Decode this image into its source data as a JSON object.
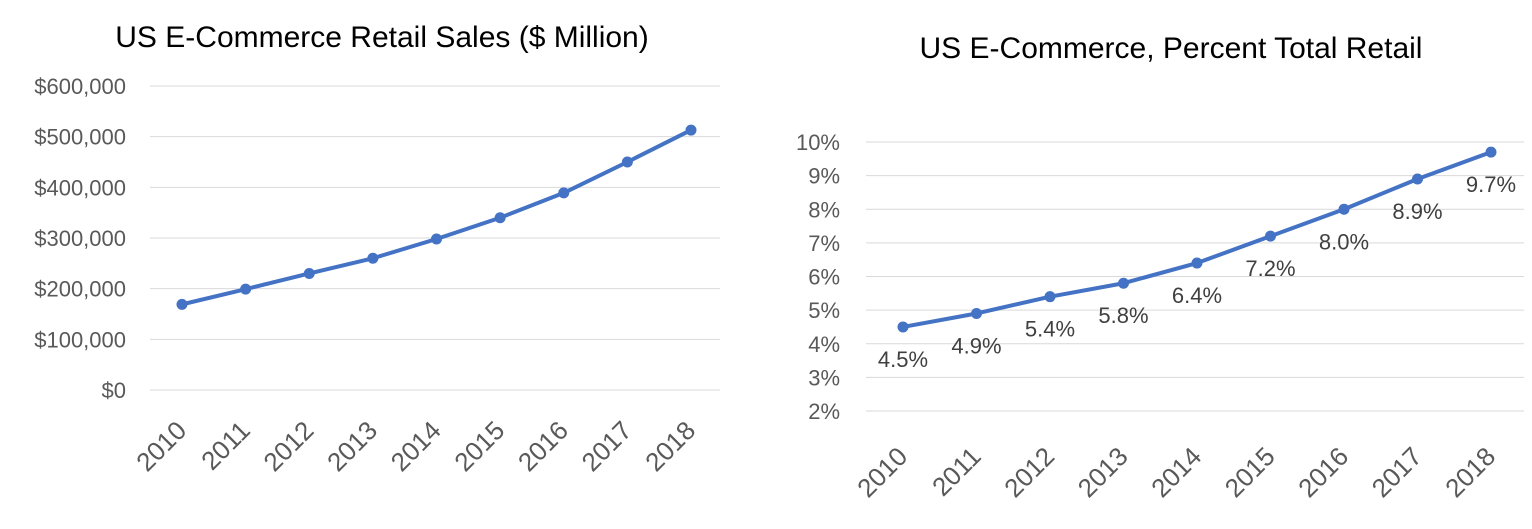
{
  "chart_data": [
    {
      "type": "line",
      "title": "US E-Commerce Retail Sales ($ Million)",
      "xlabel": "",
      "ylabel": "",
      "categories": [
        "2010",
        "2011",
        "2012",
        "2013",
        "2014",
        "2015",
        "2016",
        "2017",
        "2018"
      ],
      "series": [
        {
          "values": [
            169000,
            199000,
            230000,
            260000,
            298000,
            340000,
            389000,
            450000,
            513000
          ]
        }
      ],
      "ylim": [
        0,
        600000
      ],
      "yticks": [
        0,
        100000,
        200000,
        300000,
        400000,
        500000,
        600000
      ],
      "ytick_labels": [
        "$0",
        "$100,000",
        "$200,000",
        "$300,000",
        "$400,000",
        "$500,000",
        "$600,000"
      ],
      "data_labels": [],
      "grid": true,
      "legend": "none",
      "line_color": "#4472c4"
    },
    {
      "type": "line",
      "title": "US E-Commerce, Percent Total Retail",
      "xlabel": "",
      "ylabel": "",
      "categories": [
        "2010",
        "2011",
        "2012",
        "2013",
        "2014",
        "2015",
        "2016",
        "2017",
        "2018"
      ],
      "series": [
        {
          "values": [
            4.5,
            4.9,
            5.4,
            5.8,
            6.4,
            7.2,
            8.0,
            8.9,
            9.7
          ]
        }
      ],
      "ylim": [
        2,
        10
      ],
      "yticks": [
        2,
        3,
        4,
        5,
        6,
        7,
        8,
        9,
        10
      ],
      "ytick_labels": [
        "2%",
        "3%",
        "4%",
        "5%",
        "6%",
        "7%",
        "8%",
        "9%",
        "10%"
      ],
      "data_labels": [
        "4.5%",
        "4.9%",
        "5.4%",
        "5.8%",
        "6.4%",
        "7.2%",
        "8.0%",
        "8.9%",
        "9.7%"
      ],
      "grid": true,
      "legend": "none",
      "line_color": "#4472c4"
    }
  ]
}
